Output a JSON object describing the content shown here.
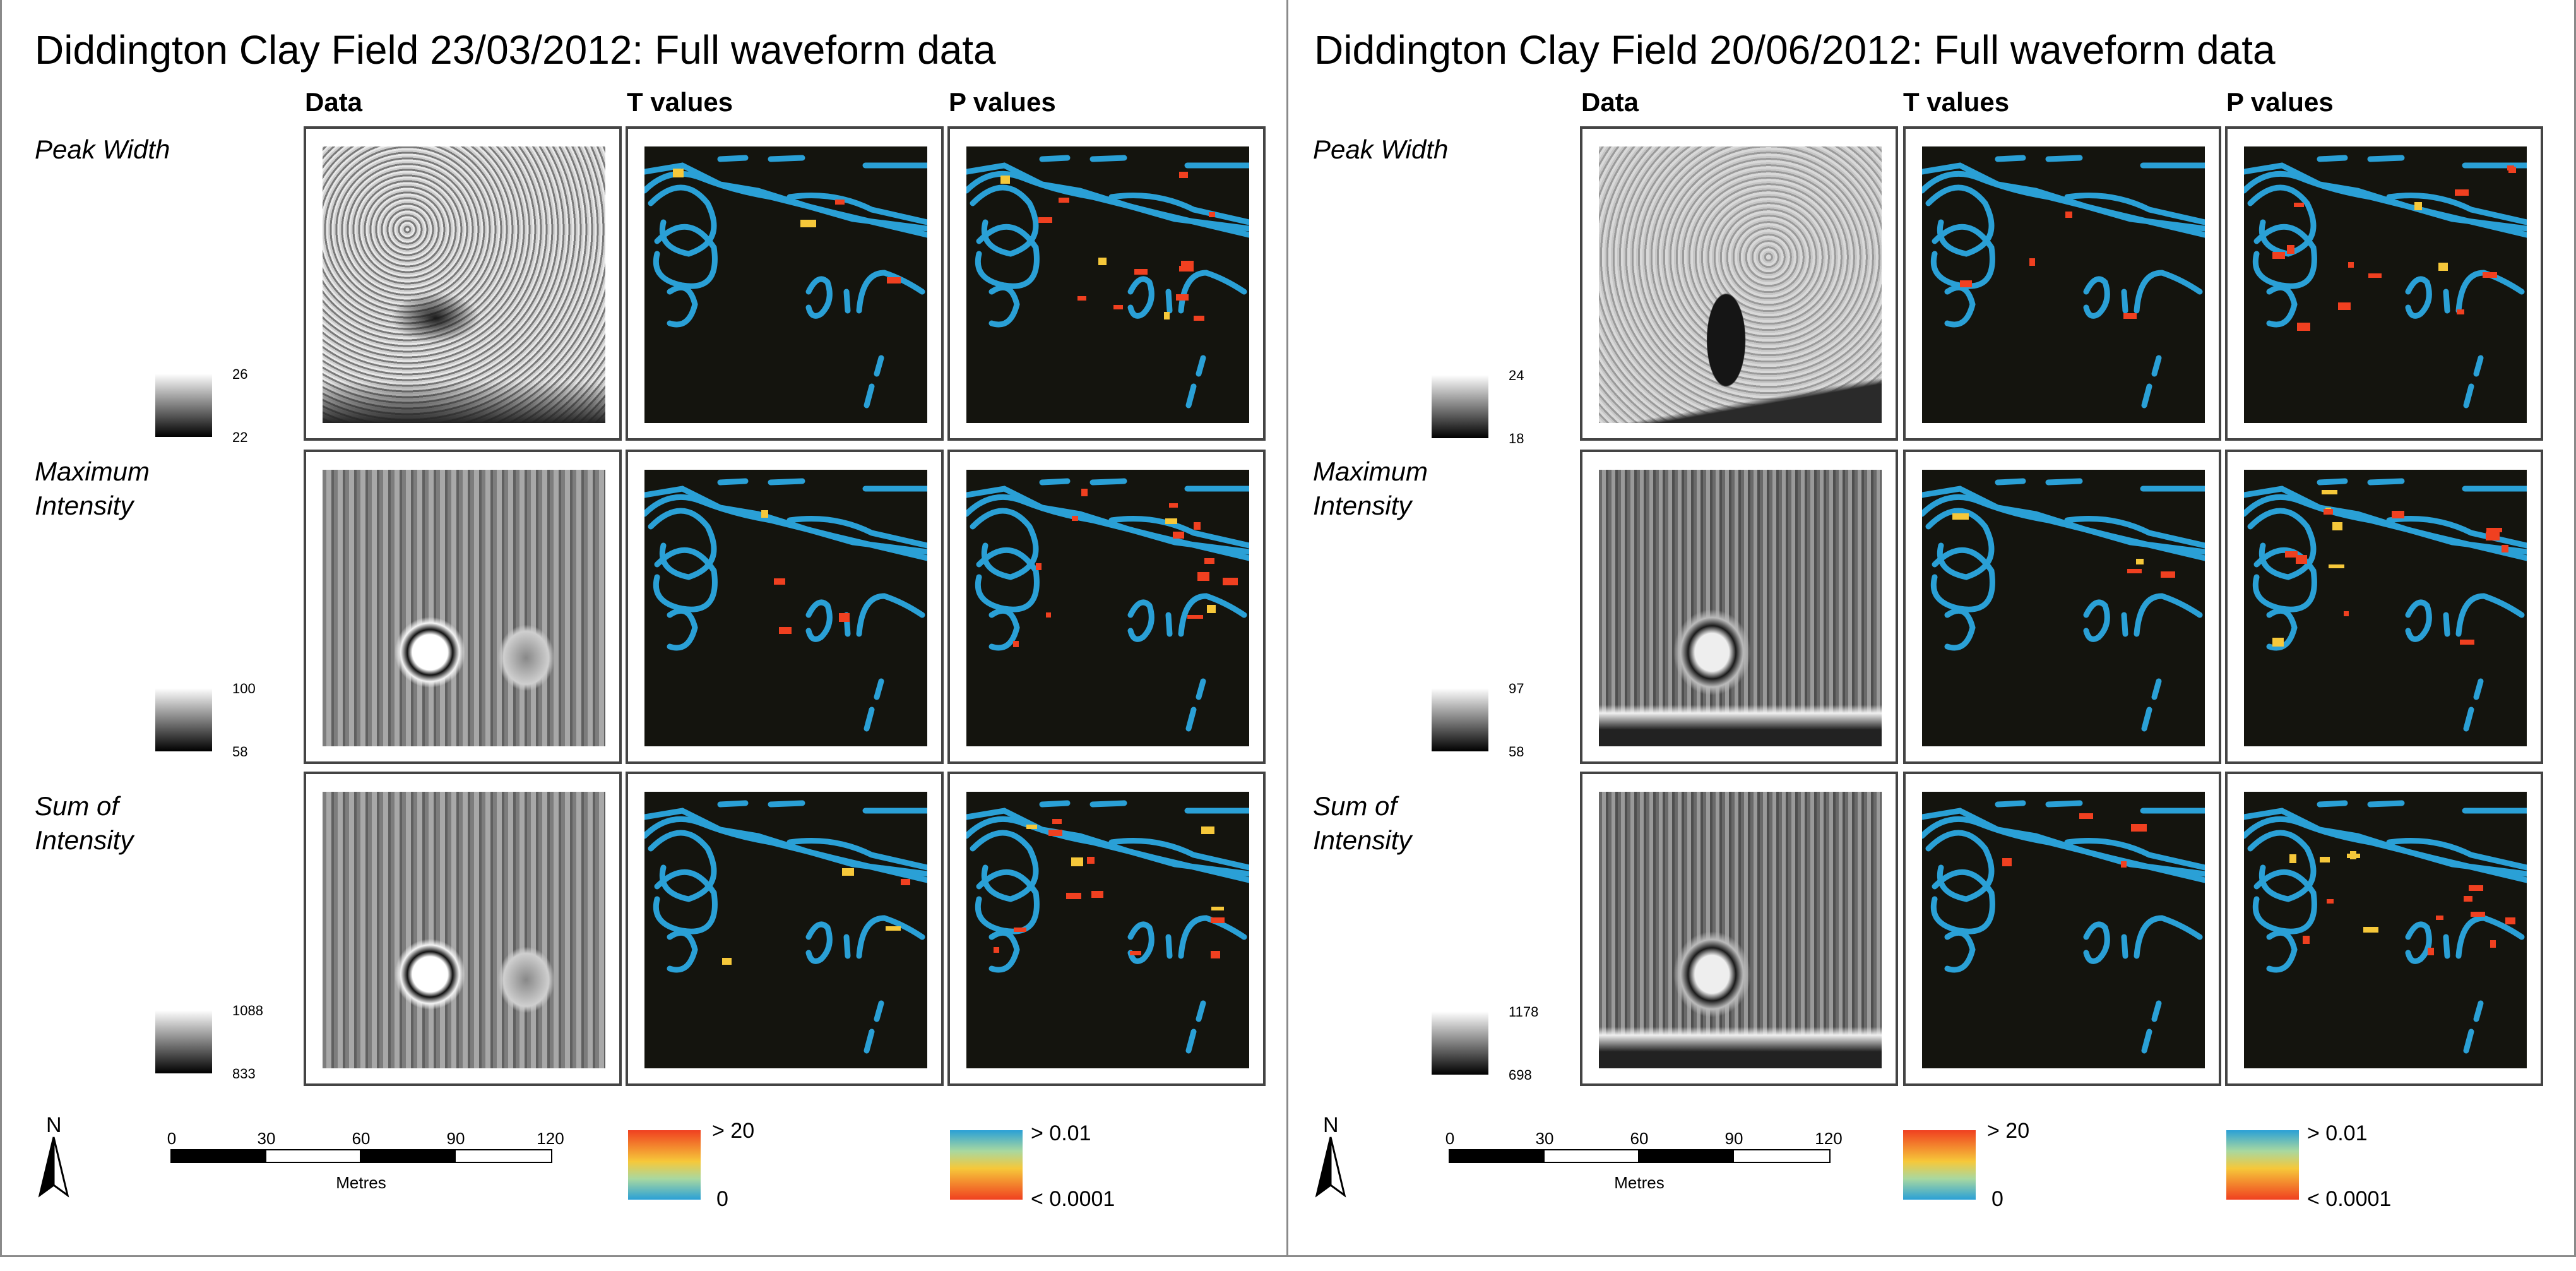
{
  "panels": [
    {
      "title": "Diddington Clay Field 23/03/2012: Full waveform data",
      "columns": [
        "Data",
        "T values",
        "P values"
      ],
      "rows": [
        {
          "label": "Peak Width",
          "legend_max": "26",
          "legend_min": "22"
        },
        {
          "label": "Maximum Intensity",
          "legend_max": "100",
          "legend_min": "58"
        },
        {
          "label": "Sum of Intensity",
          "legend_max": "1088",
          "legend_min": "833"
        }
      ],
      "north": "N",
      "scale_ticks": [
        "0",
        "30",
        "60",
        "90",
        "120"
      ],
      "scale_unit": "Metres",
      "t_legend": {
        "max": "> 20",
        "min": "0"
      },
      "p_legend": {
        "max": "> 0.01",
        "min": "< 0.0001"
      }
    },
    {
      "title": "Diddington Clay Field 20/06/2012: Full waveform data",
      "columns": [
        "Data",
        "T values",
        "P values"
      ],
      "rows": [
        {
          "label": "Peak Width",
          "legend_max": "24",
          "legend_min": "18"
        },
        {
          "label": "Maximum Intensity",
          "legend_max": "97",
          "legend_min": "58"
        },
        {
          "label": "Sum of Intensity",
          "legend_max": "1178",
          "legend_min": "698"
        }
      ],
      "north": "N",
      "scale_ticks": [
        "0",
        "30",
        "60",
        "90",
        "120"
      ],
      "scale_unit": "Metres",
      "t_legend": {
        "max": "> 20",
        "min": "0"
      },
      "p_legend": {
        "max": "> 0.01",
        "min": "< 0.0001"
      }
    }
  ],
  "colors": {
    "map_background": "#14140e",
    "feature_blue": "#2aa0d6",
    "significant_red": "#f04020",
    "highlight_yellow": "#f6c83a",
    "frame_border": "#444444"
  },
  "icons": [
    "north-arrow-icon"
  ]
}
